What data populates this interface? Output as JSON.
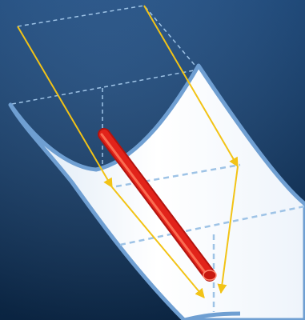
{
  "diagram": {
    "subject": "parabolic-trough-solar-collector",
    "colors": {
      "background_top": "#1f4f86",
      "background_bottom": "#0c2a4c",
      "trough_fill": "#ffffff",
      "trough_outline": "#6f9fd2",
      "guide_lines": "#9ec3e6",
      "sun_rays": "#f2c316",
      "receiver_tube": "#e2231a",
      "receiver_highlight": "#ff7a5c"
    }
  }
}
